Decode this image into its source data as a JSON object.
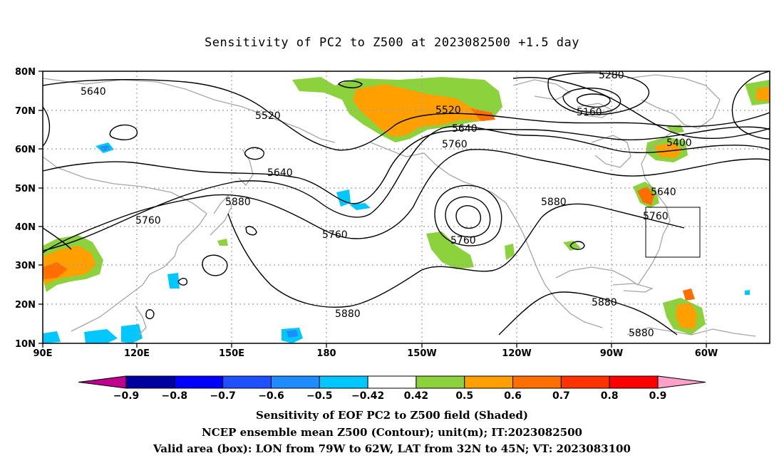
{
  "title": "Sensitivity of PC2 to Z500 at 2023082500 +1.5 day",
  "map": {
    "lat_labels": [
      "80N",
      "70N",
      "60N",
      "50N",
      "40N",
      "30N",
      "20N",
      "10N"
    ],
    "lon_labels": [
      "90E",
      "120E",
      "150E",
      "180",
      "150W",
      "120W",
      "90W",
      "60W"
    ],
    "contour_labels": [
      {
        "text": "5640",
        "id": "c1"
      },
      {
        "text": "5520",
        "id": "c2"
      },
      {
        "text": "5520",
        "id": "c3"
      },
      {
        "text": "5280",
        "id": "c4"
      },
      {
        "text": "5160",
        "id": "c5"
      },
      {
        "text": "5640",
        "id": "c6"
      },
      {
        "text": "5760",
        "id": "c7"
      },
      {
        "text": "5400",
        "id": "c8"
      },
      {
        "text": "5640",
        "id": "c9"
      },
      {
        "text": "5640",
        "id": "c10"
      },
      {
        "text": "5880",
        "id": "c11"
      },
      {
        "text": "5760",
        "id": "c12"
      },
      {
        "text": "5760",
        "id": "c13"
      },
      {
        "text": "5760",
        "id": "c14"
      },
      {
        "text": "5880",
        "id": "c15"
      },
      {
        "text": "5760",
        "id": "c16"
      },
      {
        "text": "5880",
        "id": "c17"
      },
      {
        "text": "5880",
        "id": "c18"
      },
      {
        "text": "5880",
        "id": "c19"
      }
    ],
    "valid_box": {
      "lon_from": "79W",
      "lon_to": "62W",
      "lat_from": "32N",
      "lat_to": "45N"
    }
  },
  "colorbar": {
    "labels": [
      "-0.9",
      "-0.8",
      "-0.7",
      "-0.6",
      "-0.5",
      "-0.42",
      "0.42",
      "0.5",
      "0.6",
      "0.7",
      "0.8",
      "0.9"
    ],
    "colors": [
      "#c0008f",
      "#0000a0",
      "#0000ff",
      "#1e50ff",
      "#1e8cff",
      "#00c8ff",
      "#ffffff",
      "#8cd23c",
      "#ff9f00",
      "#ff6e00",
      "#ff3200",
      "#ff0000",
      "#ffa0c8"
    ]
  },
  "footer": {
    "line1": "Sensitivity of EOF PC2 to Z500 field (Shaded)",
    "line2": "NCEP ensemble mean Z500 (Contour); unit(m); IT:2023082500",
    "line3": "Valid area (box): LON from 79W to 62W, LAT from 32N to 45N; VT: 2023083100"
  },
  "palette": {
    "green": "#8cd23c",
    "orange": "#ff9f00",
    "dark_orange": "#ff6e00",
    "red": "#ff3200",
    "cyan": "#00c8ff",
    "blue": "#1e8cff"
  }
}
